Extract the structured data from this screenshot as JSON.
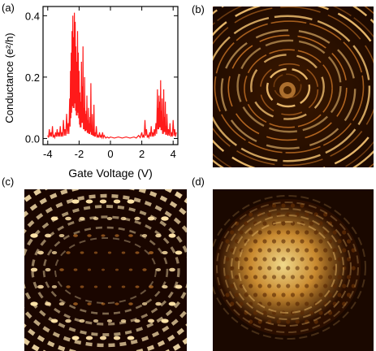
{
  "panels": {
    "a": "(a)",
    "b": "(b)",
    "c": "(c)",
    "d": "(d)"
  },
  "chart_data": {
    "type": "line",
    "xlabel": "Gate Voltage (V)",
    "ylabel": "Conductance (e²/h)",
    "xlim": [
      -4.3,
      4.3
    ],
    "ylim": [
      -0.02,
      0.43
    ],
    "xticks": [
      "-4",
      "-2",
      "0",
      "2",
      "4"
    ],
    "xtick_values": [
      -4,
      -2,
      0,
      2,
      4
    ],
    "yticks": [
      "0.0",
      "0.2",
      "0.4"
    ],
    "ytick_values": [
      0.0,
      0.2,
      0.4
    ],
    "grid": false,
    "series": [
      {
        "color": "#ff1a1a",
        "x": [
          -4.0,
          -3.9,
          -3.8,
          -3.7,
          -3.6,
          -3.5,
          -3.4,
          -3.3,
          -3.2,
          -3.1,
          -3.0,
          -2.9,
          -2.8,
          -2.7,
          -2.6,
          -2.55,
          -2.5,
          -2.45,
          -2.4,
          -2.35,
          -2.3,
          -2.25,
          -2.2,
          -2.15,
          -2.1,
          -2.05,
          -2.0,
          -1.95,
          -1.9,
          -1.85,
          -1.8,
          -1.75,
          -1.7,
          -1.65,
          -1.6,
          -1.55,
          -1.5,
          -1.45,
          -1.4,
          -1.35,
          -1.3,
          -1.25,
          -1.2,
          -1.15,
          -1.1,
          -1.05,
          -1.0,
          -0.9,
          -0.8,
          -0.7,
          -0.6,
          -0.5,
          -0.4,
          -0.2,
          0.0,
          0.5,
          1.0,
          1.5,
          1.8,
          2.0,
          2.1,
          2.2,
          2.3,
          2.4,
          2.5,
          2.6,
          2.7,
          2.8,
          2.9,
          3.0,
          3.05,
          3.1,
          3.15,
          3.2,
          3.25,
          3.3,
          3.35,
          3.4,
          3.45,
          3.5,
          3.55,
          3.6,
          3.7,
          3.8,
          3.9,
          4.0,
          4.1,
          4.2
        ],
        "y": [
          0.01,
          0.03,
          0.02,
          0.04,
          0.01,
          0.02,
          0.03,
          0.02,
          0.04,
          0.02,
          0.06,
          0.03,
          0.08,
          0.05,
          0.13,
          0.22,
          0.28,
          0.35,
          0.4,
          0.33,
          0.41,
          0.38,
          0.3,
          0.25,
          0.35,
          0.28,
          0.22,
          0.15,
          0.12,
          0.25,
          0.17,
          0.3,
          0.1,
          0.2,
          0.08,
          0.09,
          0.14,
          0.06,
          0.1,
          0.05,
          0.07,
          0.18,
          0.04,
          0.08,
          0.03,
          0.11,
          0.02,
          0.04,
          0.01,
          0.02,
          0.01,
          0.02,
          0.01,
          0.005,
          0.005,
          0.005,
          0.005,
          0.005,
          0.01,
          0.02,
          0.01,
          0.06,
          0.03,
          0.01,
          0.02,
          0.04,
          0.02,
          0.03,
          0.05,
          0.16,
          0.1,
          0.14,
          0.12,
          0.19,
          0.09,
          0.13,
          0.05,
          0.16,
          0.07,
          0.12,
          0.04,
          0.08,
          0.03,
          0.05,
          0.02,
          0.06,
          0.03,
          0.02
        ]
      }
    ]
  },
  "images": [
    {
      "id": "b",
      "pattern": "concentric-rings",
      "palette": "copper"
    },
    {
      "id": "c",
      "pattern": "elliptical-spots",
      "palette": "copper"
    },
    {
      "id": "d",
      "pattern": "bright-lattice",
      "palette": "copper"
    }
  ]
}
